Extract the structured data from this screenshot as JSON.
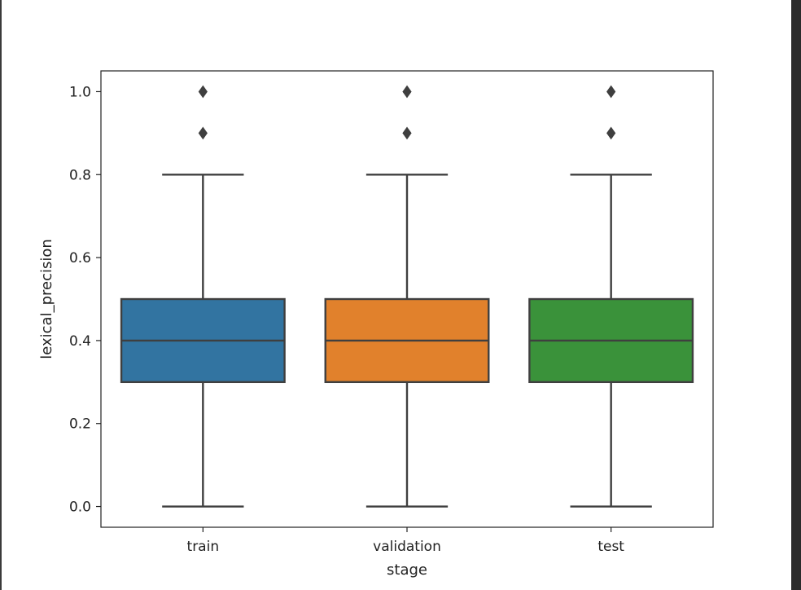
{
  "chart_data": {
    "type": "box",
    "xlabel": "stage",
    "ylabel": "lexical_precision",
    "ylim": [
      -0.05,
      1.05
    ],
    "yticks": [
      0.0,
      0.2,
      0.4,
      0.6,
      0.8,
      1.0
    ],
    "ytick_labels": [
      "0.0",
      "0.2",
      "0.4",
      "0.6",
      "0.8",
      "1.0"
    ],
    "grid": false,
    "legend": "none",
    "boxes": [
      {
        "category": "train",
        "color": "#3274a1",
        "whisker_low": 0.0,
        "q1": 0.3,
        "median": 0.4,
        "q3": 0.5,
        "whisker_high": 0.8,
        "outliers": [
          0.9,
          1.0
        ]
      },
      {
        "category": "validation",
        "color": "#e1812c",
        "whisker_low": 0.0,
        "q1": 0.3,
        "median": 0.4,
        "q3": 0.5,
        "whisker_high": 0.8,
        "outliers": [
          0.9,
          1.0
        ]
      },
      {
        "category": "test",
        "color": "#3a923a",
        "whisker_low": 0.0,
        "q1": 0.3,
        "median": 0.4,
        "q3": 0.5,
        "whisker_high": 0.8,
        "outliers": [
          0.9,
          1.0
        ]
      }
    ]
  }
}
